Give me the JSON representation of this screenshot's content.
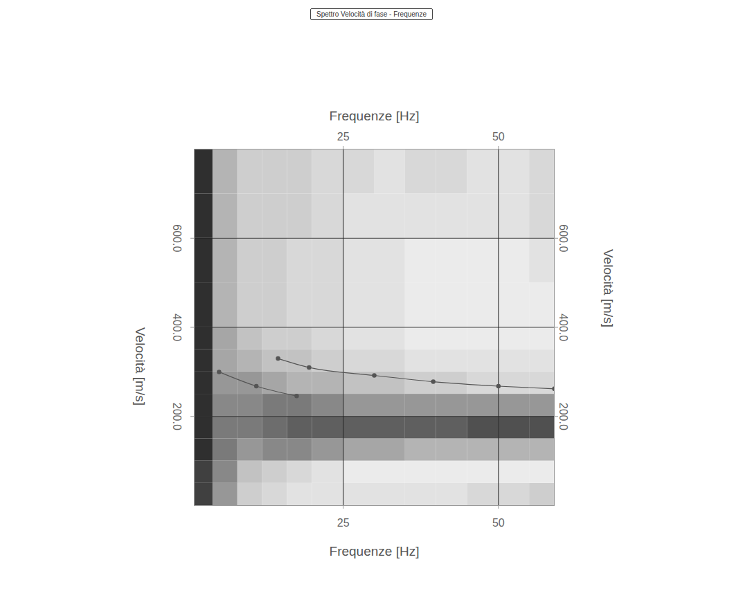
{
  "chart_data": {
    "type": "heatmap",
    "title": "Spettro Velocità di fase - Frequenze",
    "x_label": "Frequenze [Hz]",
    "y_label": "Velocità [m/s]",
    "xlim": [
      1,
      59
    ],
    "xticks": [
      25,
      50
    ],
    "ylim": [
      0,
      800
    ],
    "yticks": [
      {
        "value": 200,
        "label": "200.0"
      },
      {
        "value": 400,
        "label": "400.0"
      },
      {
        "value": 600,
        "label": "600.0"
      }
    ],
    "grid": true,
    "cells": {
      "x_bins": [
        1,
        4,
        8,
        12,
        16,
        20,
        25,
        30,
        35,
        40,
        45,
        50,
        55,
        59
      ],
      "y_bins": [
        0,
        50,
        100,
        150,
        200,
        250,
        300,
        350,
        400,
        500,
        600,
        700,
        800
      ],
      "intensity": [
        [
          0.8,
          0.5,
          0.3,
          0.25,
          0.2,
          0.2,
          0.2,
          0.2,
          0.2,
          0.2,
          0.25,
          0.25,
          0.3
        ],
        [
          0.8,
          0.55,
          0.35,
          0.3,
          0.25,
          0.2,
          0.15,
          0.15,
          0.15,
          0.15,
          0.15,
          0.15,
          0.15
        ],
        [
          0.85,
          0.6,
          0.5,
          0.55,
          0.55,
          0.5,
          0.45,
          0.45,
          0.4,
          0.4,
          0.4,
          0.4,
          0.4
        ],
        [
          0.85,
          0.6,
          0.6,
          0.65,
          0.7,
          0.7,
          0.7,
          0.7,
          0.7,
          0.7,
          0.75,
          0.75,
          0.75
        ],
        [
          0.85,
          0.55,
          0.55,
          0.6,
          0.6,
          0.55,
          0.5,
          0.5,
          0.5,
          0.5,
          0.5,
          0.5,
          0.5
        ],
        [
          0.85,
          0.5,
          0.5,
          0.45,
          0.4,
          0.4,
          0.35,
          0.35,
          0.3,
          0.3,
          0.25,
          0.25,
          0.25
        ],
        [
          0.85,
          0.45,
          0.4,
          0.35,
          0.35,
          0.3,
          0.25,
          0.25,
          0.2,
          0.2,
          0.2,
          0.2,
          0.2
        ],
        [
          0.85,
          0.45,
          0.35,
          0.3,
          0.3,
          0.25,
          0.2,
          0.2,
          0.15,
          0.15,
          0.15,
          0.15,
          0.15
        ],
        [
          0.85,
          0.4,
          0.3,
          0.3,
          0.25,
          0.25,
          0.2,
          0.2,
          0.15,
          0.15,
          0.15,
          0.15,
          0.15
        ],
        [
          0.85,
          0.4,
          0.3,
          0.3,
          0.25,
          0.25,
          0.2,
          0.2,
          0.15,
          0.15,
          0.15,
          0.15,
          0.2
        ],
        [
          0.85,
          0.4,
          0.3,
          0.3,
          0.3,
          0.25,
          0.2,
          0.2,
          0.2,
          0.2,
          0.2,
          0.2,
          0.25
        ],
        [
          0.85,
          0.4,
          0.3,
          0.3,
          0.3,
          0.25,
          0.25,
          0.2,
          0.25,
          0.25,
          0.2,
          0.2,
          0.25
        ]
      ]
    },
    "series": [
      {
        "type": "line",
        "marker": "circle",
        "color": "#555555",
        "x": [
          14.5,
          19.5,
          30,
          39.5,
          50,
          59
        ],
        "values": [
          330,
          310,
          292,
          278,
          268,
          262
        ]
      },
      {
        "type": "line",
        "marker": "circle",
        "color": "#555555",
        "x": [
          5,
          11,
          17.5
        ],
        "values": [
          300,
          268,
          246
        ]
      }
    ]
  }
}
